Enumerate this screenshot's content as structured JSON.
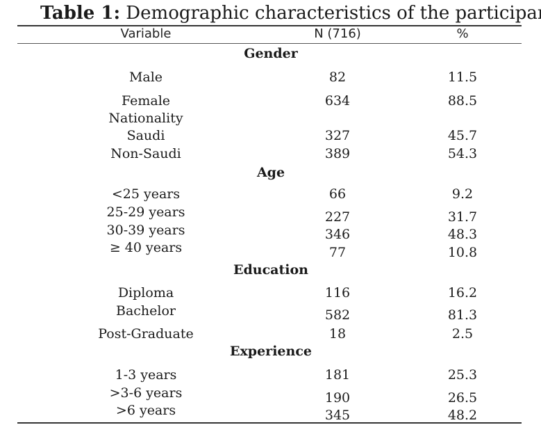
{
  "title": {
    "lead": "Table 1:",
    "text": " Demographic characteristics of the participants"
  },
  "header": {
    "variable": "Variable",
    "n": "N (716)",
    "pct": "%"
  },
  "sections": [
    {
      "heading": "Gender"
    },
    {
      "heading": "Age"
    },
    {
      "heading": "Education"
    },
    {
      "heading": "Experience"
    }
  ],
  "rows": [
    {
      "label": "Male",
      "n": "82",
      "pct": "11.5"
    },
    {
      "label": "Female",
      "n": "634",
      "pct": "88.5"
    },
    {
      "label": "Nationality",
      "n": "",
      "pct": ""
    },
    {
      "label": "Saudi",
      "n": "327",
      "pct": "45.7"
    },
    {
      "label": "Non-Saudi",
      "n": "389",
      "pct": "54.3"
    },
    {
      "label": "<25 years",
      "n": "66",
      "pct": "9.2"
    },
    {
      "label": "25-29 years",
      "n": "227",
      "pct": "31.7"
    },
    {
      "label": "30-39 years",
      "n": "346",
      "pct": "48.3"
    },
    {
      "label": "≥ 40 years",
      "n": "77",
      "pct": "10.8"
    },
    {
      "label": "Diploma",
      "n": "116",
      "pct": "16.2"
    },
    {
      "label": "Bachelor",
      "n": "582",
      "pct": "81.3"
    },
    {
      "label": "Post-Graduate",
      "n": "18",
      "pct": "2.5"
    },
    {
      "label": "1-3 years",
      "n": "181",
      "pct": "25.3"
    },
    {
      "label": ">3-6 years",
      "n": "190",
      "pct": "26.5"
    },
    {
      "label": ">6 years",
      "n": "345",
      "pct": "48.2"
    }
  ]
}
